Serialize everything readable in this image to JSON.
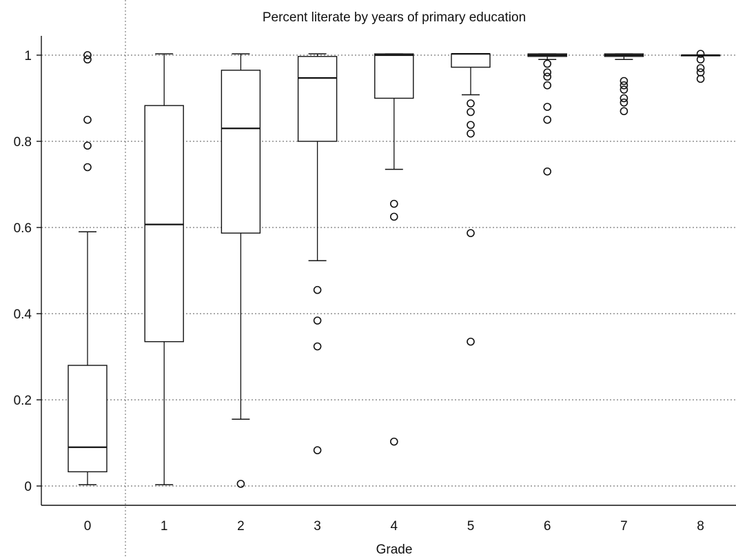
{
  "chart_data": {
    "type": "box",
    "title": "Percent literate by years of primary education",
    "xlabel": "Grade",
    "ylabel": "",
    "ylim": [
      -0.05,
      1.04
    ],
    "y_ticks": [
      "0",
      "0.2",
      "0.4",
      "0.6",
      "0.8",
      "1"
    ],
    "y_tick_values": [
      0,
      0.2,
      0.4,
      0.6,
      0.8,
      1
    ],
    "grid": true,
    "categories": [
      "0",
      "1",
      "2",
      "3",
      "4",
      "5",
      "6",
      "7",
      "8"
    ],
    "series": [
      {
        "category": "0",
        "whisker_low": 0.003,
        "q1": 0.033,
        "median": 0.09,
        "q3": 0.28,
        "whisker_high": 0.59,
        "outliers": [
          0.99,
          1.0,
          0.85,
          0.79,
          0.74
        ]
      },
      {
        "category": "1",
        "whisker_low": 0.003,
        "q1": 0.335,
        "median": 0.607,
        "q3": 0.883,
        "whisker_high": 1.003,
        "outliers": []
      },
      {
        "category": "2",
        "whisker_low": 0.155,
        "q1": 0.587,
        "median": 0.83,
        "q3": 0.965,
        "whisker_high": 1.003,
        "outliers": [
          0.005
        ]
      },
      {
        "category": "3",
        "whisker_low": 0.523,
        "q1": 0.8,
        "median": 0.947,
        "q3": 0.997,
        "whisker_high": 1.003,
        "outliers": [
          0.455,
          0.384,
          0.324,
          0.083
        ]
      },
      {
        "category": "4",
        "whisker_low": 0.735,
        "q1": 0.9,
        "median": 1.0,
        "q3": 1.003,
        "whisker_high": 1.003,
        "outliers": [
          0.655,
          0.625,
          0.103
        ]
      },
      {
        "category": "5",
        "whisker_low": 0.908,
        "q1": 0.972,
        "median": 1.003,
        "q3": 1.003,
        "whisker_high": 1.003,
        "outliers": [
          0.888,
          0.868,
          0.838,
          0.818,
          0.587,
          0.335
        ]
      },
      {
        "category": "6",
        "whisker_low": 0.99,
        "q1": 0.997,
        "median": 1.0,
        "q3": 1.003,
        "whisker_high": 1.003,
        "outliers": [
          0.98,
          0.96,
          0.95,
          0.93,
          0.88,
          0.85,
          0.73
        ]
      },
      {
        "category": "7",
        "whisker_low": 0.99,
        "q1": 0.997,
        "median": 1.0,
        "q3": 1.003,
        "whisker_high": 1.003,
        "outliers": [
          0.94,
          0.93,
          0.92,
          0.9,
          0.89,
          0.87
        ]
      },
      {
        "category": "8",
        "whisker_low": 1.0,
        "q1": 1.0,
        "median": 1.0,
        "q3": 1.0,
        "whisker_high": 1.0,
        "outliers": [
          1.003,
          0.99,
          0.97,
          0.96,
          0.945
        ]
      }
    ]
  }
}
